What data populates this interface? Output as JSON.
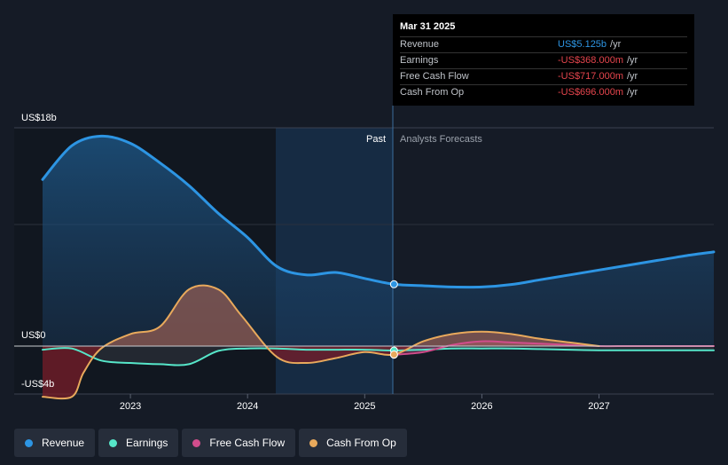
{
  "chart_data": {
    "type": "area",
    "title": "",
    "y_axis": {
      "top_label": "US$18b",
      "zero_label": "US$0",
      "bottom_label": "-US$4b",
      "ylim": [
        -4,
        18
      ]
    },
    "x_axis": {
      "ticks": [
        "2023",
        "2024",
        "2025",
        "2026",
        "2027"
      ],
      "xlim": [
        2022.25,
        2027.98
      ]
    },
    "divider": {
      "past_label": "Past",
      "forecast_label": "Analysts Forecasts",
      "at": 2025.25
    },
    "series": [
      {
        "name": "Revenue",
        "color": "#2d95e3",
        "x": [
          2022.25,
          2022.5,
          2022.75,
          2023.0,
          2023.25,
          2023.5,
          2023.75,
          2024.0,
          2024.25,
          2024.5,
          2024.75,
          2025.0,
          2025.25,
          2025.5,
          2025.75,
          2026.0,
          2026.25,
          2026.5,
          2026.75,
          2027.0,
          2027.25,
          2027.5,
          2027.75,
          2027.98
        ],
        "values": [
          13.8,
          16.6,
          17.4,
          16.8,
          15.2,
          13.3,
          11.0,
          9.0,
          6.6,
          5.9,
          6.1,
          5.6,
          5.125,
          5.0,
          4.9,
          4.9,
          5.1,
          5.5,
          5.9,
          6.3,
          6.7,
          7.1,
          7.5,
          7.8
        ]
      },
      {
        "name": "Earnings",
        "color": "#56e6c9",
        "x": [
          2022.25,
          2022.5,
          2022.75,
          2023.0,
          2023.25,
          2023.5,
          2023.75,
          2024.0,
          2024.25,
          2024.5,
          2024.75,
          2025.0,
          2025.25,
          2025.5,
          2025.75,
          2026.0,
          2026.25,
          2026.5,
          2026.75,
          2027.0,
          2027.25,
          2027.5,
          2027.75,
          2027.98
        ],
        "values": [
          -0.3,
          -0.2,
          -1.2,
          -1.4,
          -1.5,
          -1.5,
          -0.4,
          -0.2,
          -0.2,
          -0.3,
          -0.3,
          -0.3,
          -0.368,
          -0.3,
          -0.2,
          -0.2,
          -0.2,
          -0.25,
          -0.3,
          -0.35,
          -0.35,
          -0.35,
          -0.35,
          -0.35
        ]
      },
      {
        "name": "Free Cash Flow",
        "color": "#d14d8c",
        "x": [
          2025.25,
          2025.5,
          2025.75,
          2026.0,
          2026.25,
          2026.5,
          2026.75,
          2027.0,
          2027.25,
          2027.5,
          2027.75,
          2027.98
        ],
        "values": [
          -0.717,
          -0.5,
          0.1,
          0.4,
          0.3,
          0.2,
          0.1,
          0.0,
          0.0,
          0.0,
          0.0,
          0.0
        ]
      },
      {
        "name": "Cash From Op",
        "color": "#e8a95c",
        "x": [
          2022.25,
          2022.5,
          2022.6,
          2022.75,
          2023.0,
          2023.25,
          2023.5,
          2023.75,
          2023.95,
          2024.25,
          2024.5,
          2024.75,
          2025.0,
          2025.25,
          2025.5,
          2025.75,
          2026.0,
          2026.25,
          2026.5,
          2026.75,
          2027.0
        ],
        "values": [
          -4.2,
          -4.2,
          -2.2,
          -0.2,
          1.0,
          1.6,
          4.7,
          4.7,
          2.5,
          -0.9,
          -1.4,
          -1.0,
          -0.5,
          -0.696,
          0.4,
          1.0,
          1.2,
          1.0,
          0.6,
          0.3,
          0.0
        ]
      }
    ]
  },
  "tooltip": {
    "date": "Mar 31 2025",
    "rows": [
      {
        "label": "Revenue",
        "value": "US$5.125b",
        "unit": "/yr",
        "color": "#2d95e3"
      },
      {
        "label": "Earnings",
        "value": "-US$368.000m",
        "unit": "/yr",
        "color": "#e5454d"
      },
      {
        "label": "Free Cash Flow",
        "value": "-US$717.000m",
        "unit": "/yr",
        "color": "#e5454d"
      },
      {
        "label": "Cash From Op",
        "value": "-US$696.000m",
        "unit": "/yr",
        "color": "#e5454d"
      }
    ]
  },
  "legend": [
    {
      "label": "Revenue",
      "color": "#2d95e3"
    },
    {
      "label": "Earnings",
      "color": "#56e6c9"
    },
    {
      "label": "Free Cash Flow",
      "color": "#d14d8c"
    },
    {
      "label": "Cash From Op",
      "color": "#e8a95c"
    }
  ]
}
